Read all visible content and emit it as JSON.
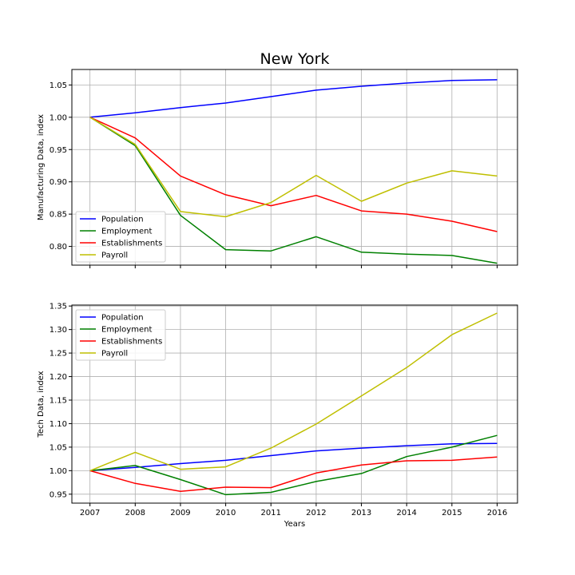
{
  "figure": {
    "title": "New York"
  },
  "chart_data": [
    {
      "type": "line",
      "title": "New York",
      "xlabel": "",
      "ylabel": "Manufacturing Data, index",
      "xlim": [
        2006.6,
        2016.45
      ],
      "ylim": [
        0.771,
        1.074
      ],
      "grid": true,
      "legend_position": "lower-left",
      "x": [
        2007,
        2008,
        2009,
        2010,
        2011,
        2012,
        2013,
        2014,
        2015,
        2016
      ],
      "xticks": [
        2007,
        2008,
        2009,
        2010,
        2011,
        2012,
        2013,
        2014,
        2015,
        2016
      ],
      "yticks": [
        "0.80",
        "0.85",
        "0.90",
        "0.95",
        "1.00",
        "1.05"
      ],
      "series": [
        {
          "name": "Population",
          "color": "#0000ff",
          "values": [
            1.0,
            1.007,
            1.015,
            1.022,
            1.032,
            1.042,
            1.048,
            1.053,
            1.057,
            1.058
          ]
        },
        {
          "name": "Employment",
          "color": "#008000",
          "values": [
            1.0,
            0.956,
            0.848,
            0.795,
            0.793,
            0.815,
            0.791,
            0.788,
            0.786,
            0.774
          ]
        },
        {
          "name": "Establishments",
          "color": "#ff0000",
          "values": [
            1.0,
            0.968,
            0.909,
            0.88,
            0.863,
            0.879,
            0.855,
            0.85,
            0.839,
            0.823
          ]
        },
        {
          "name": "Payroll",
          "color": "#bfbf00",
          "values": [
            1.0,
            0.958,
            0.854,
            0.846,
            0.868,
            0.91,
            0.87,
            0.898,
            0.917,
            0.909
          ]
        }
      ]
    },
    {
      "type": "line",
      "title": "",
      "xlabel": "Years",
      "ylabel": "Tech Data, index",
      "xlim": [
        2006.6,
        2016.45
      ],
      "ylim": [
        0.931,
        1.352
      ],
      "grid": true,
      "legend_position": "upper-left",
      "x": [
        2007,
        2008,
        2009,
        2010,
        2011,
        2012,
        2013,
        2014,
        2015,
        2016
      ],
      "xticks": [
        2007,
        2008,
        2009,
        2010,
        2011,
        2012,
        2013,
        2014,
        2015,
        2016
      ],
      "yticks": [
        "0.95",
        "1.00",
        "1.05",
        "1.10",
        "1.15",
        "1.20",
        "1.25",
        "1.30",
        "1.35"
      ],
      "series": [
        {
          "name": "Population",
          "color": "#0000ff",
          "values": [
            1.0,
            1.007,
            1.015,
            1.022,
            1.032,
            1.042,
            1.048,
            1.053,
            1.057,
            1.058
          ]
        },
        {
          "name": "Employment",
          "color": "#008000",
          "values": [
            1.0,
            1.011,
            0.981,
            0.949,
            0.954,
            0.977,
            0.994,
            1.03,
            1.05,
            1.075
          ]
        },
        {
          "name": "Establishments",
          "color": "#ff0000",
          "values": [
            1.0,
            0.973,
            0.956,
            0.965,
            0.964,
            0.995,
            1.012,
            1.021,
            1.022,
            1.029
          ]
        },
        {
          "name": "Payroll",
          "color": "#bfbf00",
          "values": [
            1.0,
            1.039,
            1.003,
            1.008,
            1.048,
            1.099,
            1.159,
            1.219,
            1.289,
            1.335
          ]
        }
      ]
    }
  ]
}
